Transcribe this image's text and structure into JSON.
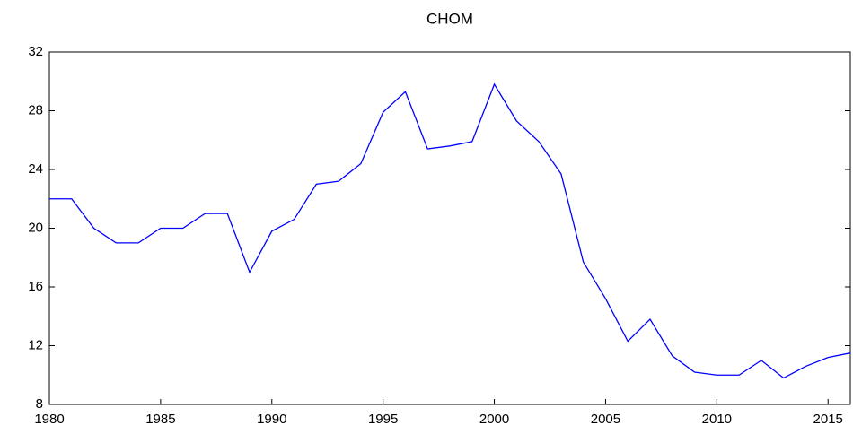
{
  "chart_data": {
    "type": "line",
    "title": "CHOM",
    "x": [
      1980,
      1981,
      1982,
      1983,
      1984,
      1985,
      1986,
      1987,
      1988,
      1989,
      1990,
      1991,
      1992,
      1993,
      1994,
      1995,
      1996,
      1997,
      1998,
      1999,
      2000,
      2001,
      2002,
      2003,
      2004,
      2005,
      2006,
      2007,
      2008,
      2009,
      2010,
      2011,
      2012,
      2013,
      2014,
      2015,
      2016
    ],
    "series": [
      {
        "name": "CHOM",
        "color": "#0000ff",
        "values": [
          22,
          22,
          20,
          19,
          19,
          20,
          20,
          21,
          21,
          17,
          19.8,
          20.6,
          23,
          23.2,
          24.4,
          27.9,
          29.3,
          25.4,
          25.6,
          25.9,
          29.8,
          27.3,
          25.9,
          23.7,
          17.7,
          15.2,
          12.3,
          13.8,
          11.3,
          10.2,
          10,
          10,
          11,
          9.8,
          10.6,
          11.2,
          11.5
        ]
      }
    ],
    "xlim": [
      1980,
      2016
    ],
    "xticks": [
      1980,
      1985,
      1990,
      1995,
      2000,
      2005,
      2010,
      2015
    ],
    "ylim": [
      8,
      32
    ],
    "yticks": [
      8,
      12,
      16,
      20,
      24,
      28,
      32
    ],
    "grid": false
  }
}
